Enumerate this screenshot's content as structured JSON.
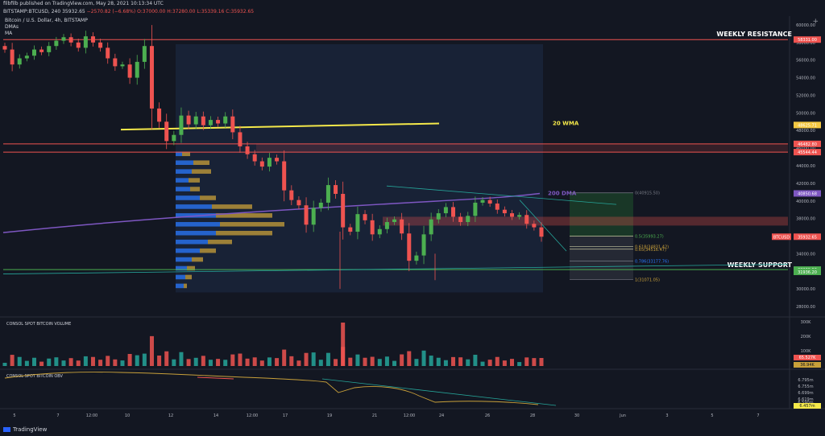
{
  "header": {
    "publisher_line": "filbfilb published on TradingView.com, May 28, 2021 10:13:34 UTC",
    "symbol_line_prefix": "BITSTAMP:BTCUSD, 240",
    "price": "35932.65",
    "change": "−2570.82 (−6.68%)",
    "ohlc": "O:37000.00  H:37280.00  L:35339.16  C:35932.65"
  },
  "legend": {
    "title": "Bitcoin / U.S. Dollar, 4h, BITSTAMP",
    "ind1": "DMAs",
    "ind2": "MA"
  },
  "plus_label": "+",
  "watermark": "TradingView",
  "chart_data": {
    "type": "candlestick",
    "symbol": "BTCUSD",
    "timeframe": "4h",
    "price_axis": {
      "ylim": [
        27000,
        61000
      ],
      "ticks": [
        28000,
        30000,
        32000,
        34000,
        36000,
        38000,
        40000,
        42000,
        44000,
        46000,
        48000,
        50000,
        52000,
        54000,
        56000,
        58000,
        60000
      ]
    },
    "time_axis_labels": [
      "5",
      "7",
      "12:00",
      "10",
      "12",
      "14",
      "12:00",
      "17",
      "19",
      "21",
      "12:00",
      "24",
      "26",
      "28",
      "30",
      "Jun",
      "3",
      "5",
      "7"
    ],
    "candles_close_path": [
      57200,
      55500,
      56200,
      56500,
      57200,
      56900,
      57600,
      58200,
      58600,
      58000,
      57400,
      58700,
      58000,
      57400,
      56200,
      55300,
      55500,
      54000,
      55800,
      57600,
      50500,
      49000,
      46800,
      47500,
      49700,
      48700,
      49600,
      48600,
      49200,
      48800,
      49600,
      47800,
      46200,
      45300,
      44500,
      43900,
      44900,
      44500,
      41200,
      40100,
      39500,
      37300,
      39200,
      39800,
      41800,
      40800,
      37000,
      36500,
      38500,
      37800,
      36200,
      36800,
      37600,
      37900,
      36300,
      33200,
      33800,
      36200,
      37900,
      38600,
      39300,
      38200,
      37600,
      38300,
      39800,
      40100,
      39700,
      39000,
      38600,
      38200,
      38400,
      37400,
      37000,
      35932.65
    ],
    "horizontal_levels": [
      {
        "label": "WEEKLY RESISTANCE",
        "value": 58331.0,
        "tag": "58331.00",
        "color": "#ef5350"
      },
      {
        "label": "",
        "value": 46482.8,
        "tag": "46482.80",
        "color": "#ef5350"
      },
      {
        "label": "",
        "value": 45544.44,
        "tag": "45544.44",
        "color": "#ef5350"
      },
      {
        "label": "WEEKLY SUPPORT",
        "value": 32200.96,
        "tag": "32200.96",
        "color": "#4caf50"
      }
    ],
    "price_tags": [
      {
        "value": 48625.71,
        "tag": "48625.71",
        "color": "#f5c842"
      },
      {
        "value": 40850.68,
        "tag": "40850.68",
        "color": "#7e57c2"
      },
      {
        "value": 35932.65,
        "tag": "35932.65",
        "color": "#ef5350"
      },
      {
        "value": 31936.2,
        "tag": "31936.20",
        "color": "#4caf50"
      }
    ],
    "ma_labels": [
      {
        "label": "20 WMA",
        "value": 48800
      },
      {
        "label": "200 DMA",
        "value": 40850
      }
    ],
    "fib_levels": [
      {
        "label": "0(40915.50)",
        "value": 40915.5
      },
      {
        "label": "0.5(35993.27)",
        "value": 35993.27
      },
      {
        "label": "0.618(34831.42)",
        "value": 34831.42
      },
      {
        "label": "0.65(34516.47)",
        "value": 34516.47
      },
      {
        "label": "0.786(33177.76)",
        "value": 33177.76
      },
      {
        "label": "1(31071.05)",
        "value": 31071.05
      }
    ],
    "volume_pane": {
      "title": "CONSOL SPOT BITCOIN VOLUME",
      "ticks": [
        "300K",
        "200K",
        "100K"
      ],
      "last_tag": "65.527K",
      "ma_tag": "36.94K"
    },
    "obv_pane": {
      "title": "CONSOL SPOT BITCOIN OBV",
      "ticks": [
        "6.795m",
        "6.755m",
        "6.699m",
        "6.619m",
        "6.590m"
      ],
      "last_tag": "6.457m"
    },
    "currency_label": "BTCUSD"
  },
  "colors": {
    "bg": "#131722",
    "up": "#26a69a",
    "down": "#ef5350",
    "candle_up": "#4caf50",
    "candle_down": "#ef5350",
    "wma": "#f5e94a",
    "dma": "#7e57c2",
    "support": "#4caf50",
    "resistance": "#ef5350"
  }
}
